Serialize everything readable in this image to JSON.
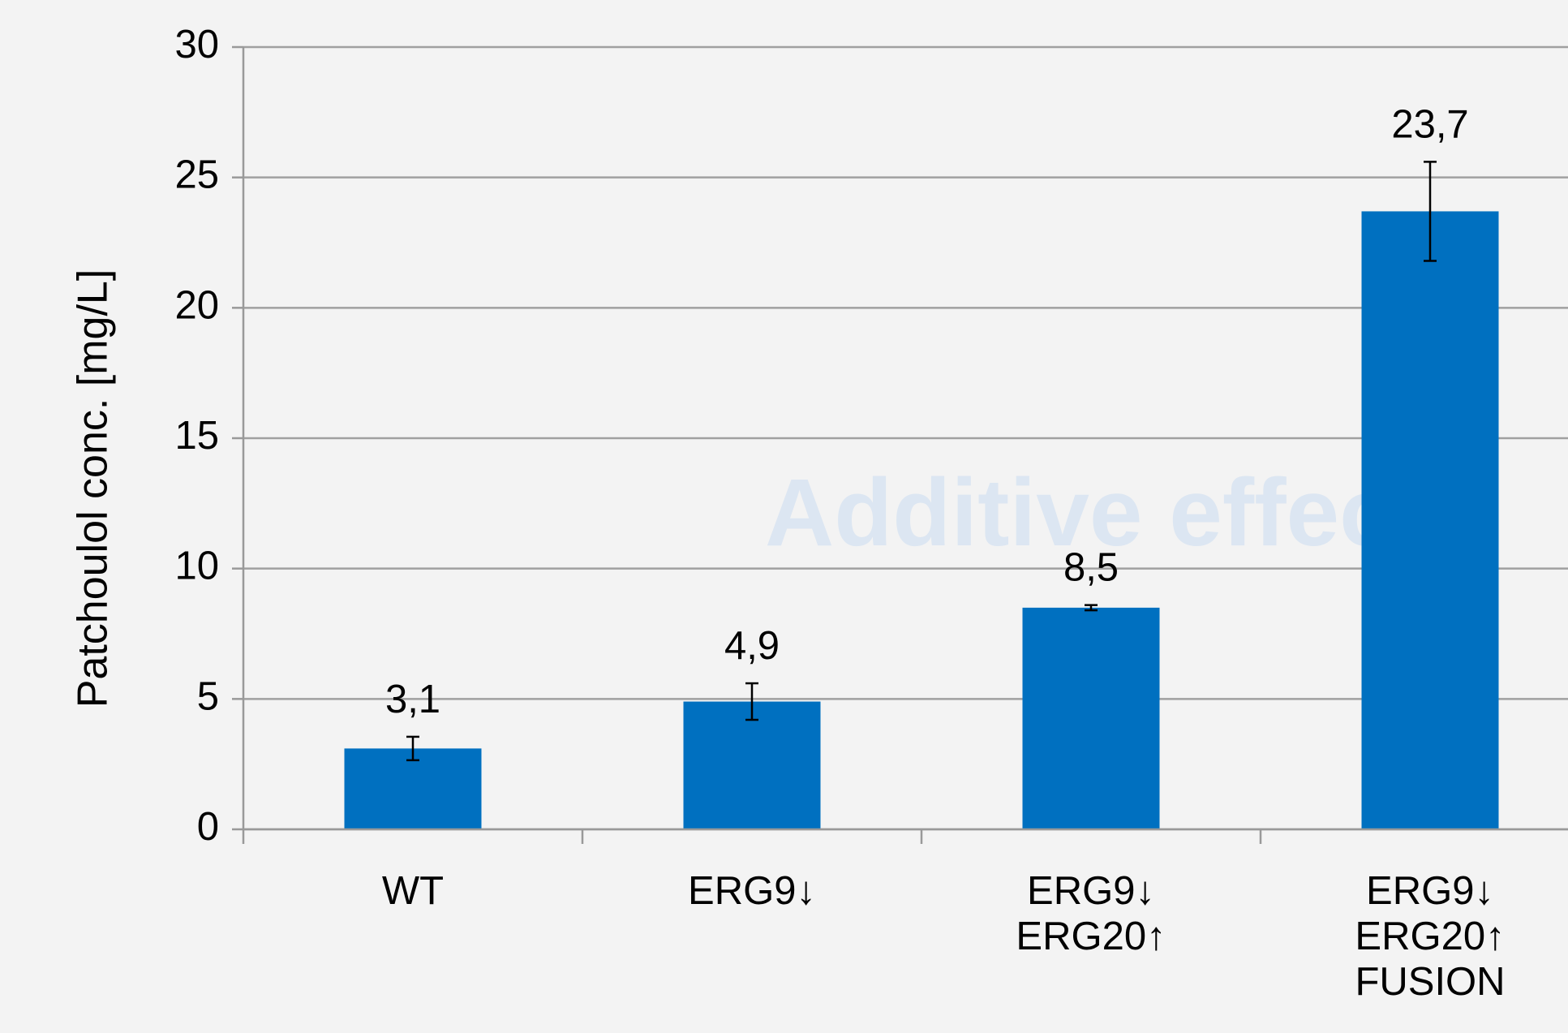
{
  "chart_data": {
    "type": "bar",
    "y_label": "Patchoulol conc. [mg/L]",
    "annotation": "Additive effects",
    "categories": [
      [
        "WT"
      ],
      [
        "ERG9↓"
      ],
      [
        "ERG9↓",
        "ERG20↑"
      ],
      [
        "ERG9↓",
        "ERG20↑",
        "FUSION"
      ]
    ],
    "values": [
      3.1,
      4.9,
      8.5,
      23.7
    ],
    "value_labels": [
      "3,1",
      "4,9",
      "8,5",
      "23,7"
    ],
    "errors": [
      0.45,
      0.7,
      0.1,
      1.9
    ],
    "color": "#0070c0",
    "ylim": [
      0,
      30
    ],
    "yticks": [
      0,
      5,
      10,
      15,
      20,
      25,
      30
    ],
    "grid": true
  }
}
